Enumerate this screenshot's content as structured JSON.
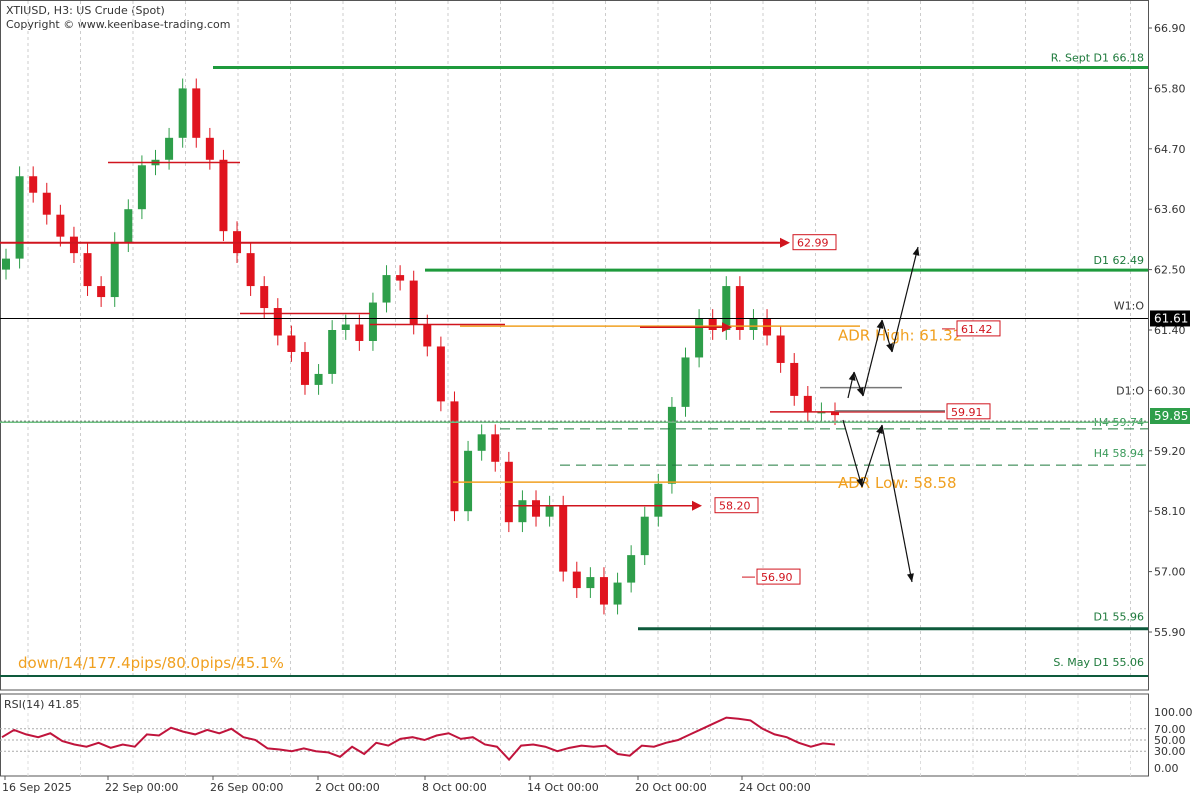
{
  "header": {
    "title": "XTIUSD, H3:  US Crude (Spot)",
    "copyright": "Copyright © www.keenbase-trading.com"
  },
  "colors": {
    "bull": "#2e9e4a",
    "bear": "#e0141e",
    "level_green": "#1e9a3c",
    "level_red": "#d0141e",
    "adr": "#f0a020",
    "rsi": "#c0143c",
    "current_price_bg": "#2e9e4a",
    "w1_open_bg": "#000000"
  },
  "chart_data": {
    "type": "candlestick",
    "symbol": "XTIUSD",
    "timeframe": "H3",
    "ylim": [
      55.9,
      66.9
    ],
    "price_ticks": [
      "66.90",
      "65.80",
      "64.70",
      "63.60",
      "62.50",
      "61.40",
      "60.30",
      "59.20",
      "58.10",
      "57.00",
      "55.90"
    ],
    "date_ticks": [
      "16 Sep 2025",
      "22 Sep 00:00",
      "26 Sep 00:00",
      "2 Oct 00:00",
      "8 Oct 00:00",
      "14 Oct 00:00",
      "20 Oct 00:00",
      "24 Oct 00:00"
    ],
    "closes_approx": [
      62.7,
      64.2,
      63.9,
      63.5,
      63.1,
      62.8,
      62.2,
      62.0,
      63.0,
      63.6,
      64.4,
      64.5,
      64.9,
      65.8,
      64.9,
      64.5,
      63.2,
      62.8,
      62.2,
      61.8,
      61.3,
      61.0,
      60.4,
      60.6,
      61.4,
      61.5,
      61.2,
      61.9,
      62.4,
      62.3,
      61.5,
      61.1,
      60.1,
      58.1,
      59.2,
      59.5,
      59.0,
      57.9,
      58.3,
      58.0,
      58.2,
      57.0,
      56.7,
      56.9,
      56.4,
      56.8,
      57.3,
      58.0,
      58.6,
      60.0,
      60.9,
      61.6,
      61.4,
      62.2,
      61.4,
      61.6,
      61.3,
      60.8,
      60.2,
      59.9,
      59.9,
      59.85
    ],
    "levels": [
      {
        "label": "R. Sept D1 66.18",
        "price": 66.18,
        "color": "green"
      },
      {
        "label": "D1 62.49",
        "price": 62.49,
        "color": "green"
      },
      {
        "label": "W1:O",
        "price": 61.61,
        "color": "black"
      },
      {
        "label": "D1:O",
        "price": 60.3,
        "color": "none"
      },
      {
        "label": "H4 59.74",
        "price": 59.74,
        "color": "dotted"
      },
      {
        "label": "H4 58.94",
        "price": 58.94,
        "color": "dashed-green"
      },
      {
        "label": "D1 55.96",
        "price": 55.96,
        "color": "dark-green"
      },
      {
        "label": "S. May D1 55.06",
        "price": 55.06,
        "color": "green"
      }
    ],
    "red_targets": [
      "62.99",
      "61.42",
      "59.91",
      "58.20",
      "56.90"
    ],
    "adr": {
      "high_label": "ADR High: 61.32",
      "high": 61.32,
      "low_label": "ADR Low: 58.58",
      "low": 58.58
    },
    "current_price": "59.85",
    "w1_open_price": "61.61",
    "stats_text": "down/14/177.4pips/80.0pips/45.1%",
    "rsi": {
      "label": "RSI(14) 41.85",
      "ticks": [
        "100.00",
        "70.00",
        "50.00",
        "30.00",
        "0.00"
      ],
      "ylim": [
        0,
        100
      ],
      "values": [
        55,
        68,
        60,
        55,
        62,
        48,
        42,
        38,
        45,
        36,
        42,
        38,
        60,
        58,
        72,
        65,
        60,
        68,
        62,
        70,
        55,
        50,
        35,
        33,
        30,
        35,
        30,
        28,
        20,
        38,
        25,
        45,
        40,
        52,
        55,
        50,
        58,
        62,
        52,
        55,
        42,
        38,
        15,
        40,
        42,
        38,
        30,
        36,
        40,
        38,
        40,
        25,
        22,
        40,
        38,
        45,
        50,
        60,
        70,
        80,
        90,
        88,
        85,
        70,
        60,
        55,
        45,
        38,
        44,
        41.85
      ]
    }
  }
}
